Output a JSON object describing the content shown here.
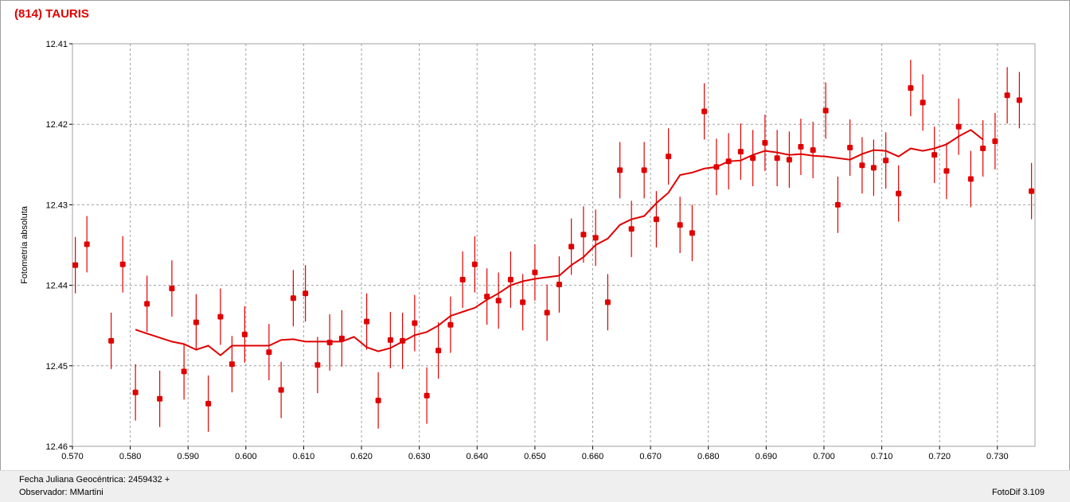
{
  "title": "(814) TAURIS",
  "footer": {
    "fecha": "Fecha Juliana Geocéntrica: 2459432 +",
    "observador": "Observador: MMartini",
    "software": "FotoDif 3.109"
  },
  "colors": {
    "accent": "#e00000",
    "grid": "#a0a0a0",
    "footer_bg": "#efefef"
  },
  "chart_data": {
    "type": "scatter",
    "title": "(814) TAURIS",
    "xlabel": "Fecha Juliana Geocéntrica: 2459432 +",
    "ylabel": "Fotometría absoluta",
    "xlim": [
      0.57,
      0.7365
    ],
    "ylim": [
      12.46,
      12.41
    ],
    "y_axis_inverted": true,
    "grid": true,
    "xticks": [
      "0.570",
      "0.580",
      "0.590",
      "0.600",
      "0.610",
      "0.620",
      "0.630",
      "0.640",
      "0.650",
      "0.660",
      "0.670",
      "0.680",
      "0.690",
      "0.700",
      "0.710",
      "0.720",
      "0.730"
    ],
    "yticks": [
      "12.41",
      "12.42",
      "12.43",
      "12.44",
      "12.45",
      "12.46"
    ],
    "error_bar_half_width": 0.0035,
    "series": [
      {
        "type": "scatter-errorbars",
        "color": "#e00000",
        "points": [
          [
            0.5705,
            12.4375
          ],
          [
            0.5725,
            12.4349
          ],
          [
            0.5767,
            12.4469
          ],
          [
            0.5787,
            12.4374
          ],
          [
            0.5809,
            12.4533
          ],
          [
            0.5829,
            12.4423
          ],
          [
            0.5851,
            12.4541
          ],
          [
            0.5872,
            12.4404
          ],
          [
            0.5893,
            12.4507
          ],
          [
            0.5914,
            12.4446
          ],
          [
            0.5935,
            12.4547
          ],
          [
            0.5956,
            12.4439
          ],
          [
            0.5976,
            12.4498
          ],
          [
            0.5998,
            12.4461
          ],
          [
            0.604,
            12.4483
          ],
          [
            0.6061,
            12.453
          ],
          [
            0.6082,
            12.4416
          ],
          [
            0.6103,
            12.441
          ],
          [
            0.6124,
            12.4499
          ],
          [
            0.6145,
            12.4471
          ],
          [
            0.6166,
            12.4466
          ],
          [
            0.6209,
            12.4445
          ],
          [
            0.6229,
            12.4543
          ],
          [
            0.625,
            12.4468
          ],
          [
            0.6271,
            12.4469
          ],
          [
            0.6292,
            12.4447
          ],
          [
            0.6313,
            12.4537
          ],
          [
            0.6333,
            12.4481
          ],
          [
            0.6354,
            12.4449
          ],
          [
            0.6375,
            12.4393
          ],
          [
            0.6396,
            12.4374
          ],
          [
            0.6417,
            12.4414
          ],
          [
            0.6437,
            12.4419
          ],
          [
            0.6458,
            12.4393
          ],
          [
            0.6479,
            12.4421
          ],
          [
            0.65,
            12.4384
          ],
          [
            0.6521,
            12.4434
          ],
          [
            0.6542,
            12.4399
          ],
          [
            0.6563,
            12.4352
          ],
          [
            0.6584,
            12.4337
          ],
          [
            0.6605,
            12.4341
          ],
          [
            0.6626,
            12.4421
          ],
          [
            0.6647,
            12.4257
          ],
          [
            0.6667,
            12.433
          ],
          [
            0.6689,
            12.4257
          ],
          [
            0.671,
            12.4318
          ],
          [
            0.6731,
            12.424
          ],
          [
            0.6751,
            12.4325
          ],
          [
            0.6772,
            12.4335
          ],
          [
            0.6793,
            12.4184
          ],
          [
            0.6814,
            12.4253
          ],
          [
            0.6835,
            12.4246
          ],
          [
            0.6856,
            12.4234
          ],
          [
            0.6877,
            12.4242
          ],
          [
            0.6898,
            12.4223
          ],
          [
            0.6919,
            12.4242
          ],
          [
            0.694,
            12.4244
          ],
          [
            0.696,
            12.4228
          ],
          [
            0.6981,
            12.4232
          ],
          [
            0.7003,
            12.4183
          ],
          [
            0.7024,
            12.43
          ],
          [
            0.7045,
            12.4229
          ],
          [
            0.7066,
            12.4251
          ],
          [
            0.7086,
            12.4254
          ],
          [
            0.7107,
            12.4245
          ],
          [
            0.7129,
            12.4286
          ],
          [
            0.715,
            12.4155
          ],
          [
            0.7171,
            12.4173
          ],
          [
            0.7191,
            12.4238
          ],
          [
            0.7212,
            12.4258
          ],
          [
            0.7233,
            12.4203
          ],
          [
            0.7254,
            12.4268
          ],
          [
            0.7275,
            12.423
          ],
          [
            0.7296,
            12.4221
          ],
          [
            0.7317,
            12.4164
          ],
          [
            0.7338,
            12.417
          ],
          [
            0.7359,
            12.4283
          ]
        ]
      },
      {
        "type": "line",
        "name": "",
        "color": "#e00000",
        "points": [
          [
            0.5809,
            12.4455
          ],
          [
            0.5829,
            12.446
          ],
          [
            0.5851,
            12.4465
          ],
          [
            0.5872,
            12.447
          ],
          [
            0.5893,
            12.4473
          ],
          [
            0.5914,
            12.448
          ],
          [
            0.5935,
            12.4475
          ],
          [
            0.5956,
            12.4487
          ],
          [
            0.5976,
            12.4475
          ],
          [
            0.5998,
            12.4475
          ],
          [
            0.604,
            12.4475
          ],
          [
            0.6061,
            12.4468
          ],
          [
            0.6082,
            12.4467
          ],
          [
            0.6103,
            12.447
          ],
          [
            0.6124,
            12.447
          ],
          [
            0.6145,
            12.447
          ],
          [
            0.6166,
            12.447
          ],
          [
            0.6187,
            12.4464
          ],
          [
            0.6209,
            12.4477
          ],
          [
            0.6229,
            12.4482
          ],
          [
            0.625,
            12.4478
          ],
          [
            0.6271,
            12.447
          ],
          [
            0.6292,
            12.4462
          ],
          [
            0.6313,
            12.4458
          ],
          [
            0.6333,
            12.445
          ],
          [
            0.6354,
            12.4438
          ],
          [
            0.6375,
            12.4433
          ],
          [
            0.6396,
            12.4428
          ],
          [
            0.6417,
            12.4418
          ],
          [
            0.6437,
            12.441
          ],
          [
            0.6458,
            12.44
          ],
          [
            0.6479,
            12.4395
          ],
          [
            0.65,
            12.4392
          ],
          [
            0.6521,
            12.439
          ],
          [
            0.6542,
            12.4388
          ],
          [
            0.6563,
            12.4375
          ],
          [
            0.6584,
            12.4365
          ],
          [
            0.6605,
            12.435
          ],
          [
            0.6626,
            12.4342
          ],
          [
            0.6647,
            12.4325
          ],
          [
            0.6667,
            12.4318
          ],
          [
            0.6689,
            12.4314
          ],
          [
            0.671,
            12.4298
          ],
          [
            0.6731,
            12.4285
          ],
          [
            0.6751,
            12.4263
          ],
          [
            0.6772,
            12.426
          ],
          [
            0.6793,
            12.4255
          ],
          [
            0.6814,
            12.4253
          ],
          [
            0.6835,
            12.4246
          ],
          [
            0.6856,
            12.4245
          ],
          [
            0.6877,
            12.4238
          ],
          [
            0.6898,
            12.4233
          ],
          [
            0.6919,
            12.4235
          ],
          [
            0.694,
            12.4238
          ],
          [
            0.696,
            12.4237
          ],
          [
            0.6981,
            12.4239
          ],
          [
            0.7003,
            12.424
          ],
          [
            0.7024,
            12.4242
          ],
          [
            0.7045,
            12.4244
          ],
          [
            0.7066,
            12.4237
          ],
          [
            0.7086,
            12.4232
          ],
          [
            0.7107,
            12.4233
          ],
          [
            0.7129,
            12.424
          ],
          [
            0.715,
            12.423
          ],
          [
            0.7171,
            12.4233
          ],
          [
            0.7191,
            12.423
          ],
          [
            0.7212,
            12.4225
          ],
          [
            0.7233,
            12.4215
          ],
          [
            0.7254,
            12.4207
          ],
          [
            0.7275,
            12.4219
          ]
        ]
      }
    ]
  }
}
